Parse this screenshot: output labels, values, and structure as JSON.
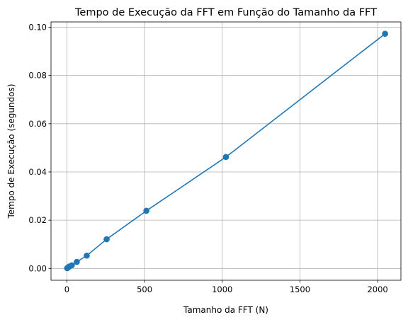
{
  "chart_data": {
    "type": "line",
    "title": "Tempo de Execução da FFT em Função do Tamanho da FFT",
    "xlabel": "Tamanho da FFT (N)",
    "ylabel": "Tempo de Execução (segundos)",
    "xlim": [
      -102,
      2150
    ],
    "ylim": [
      -0.0049,
      0.1022
    ],
    "xticks": [
      0,
      500,
      1000,
      1500,
      2000
    ],
    "xtick_labels": [
      "0",
      "500",
      "1000",
      "1500",
      "2000"
    ],
    "yticks": [
      0.0,
      0.02,
      0.04,
      0.06,
      0.08,
      0.1
    ],
    "ytick_labels": [
      "0.00",
      "0.02",
      "0.04",
      "0.06",
      "0.08",
      "0.10"
    ],
    "grid": true,
    "series": [
      {
        "color": "#1f77b4",
        "marker": "circle",
        "x": [
          2,
          4,
          8,
          16,
          32,
          64,
          128,
          256,
          512,
          1024,
          2048
        ],
        "y": [
          0.0001,
          0.0002,
          0.0004,
          0.0008,
          0.0013,
          0.0027,
          0.0053,
          0.0121,
          0.0239,
          0.0462,
          0.0973
        ]
      }
    ]
  }
}
